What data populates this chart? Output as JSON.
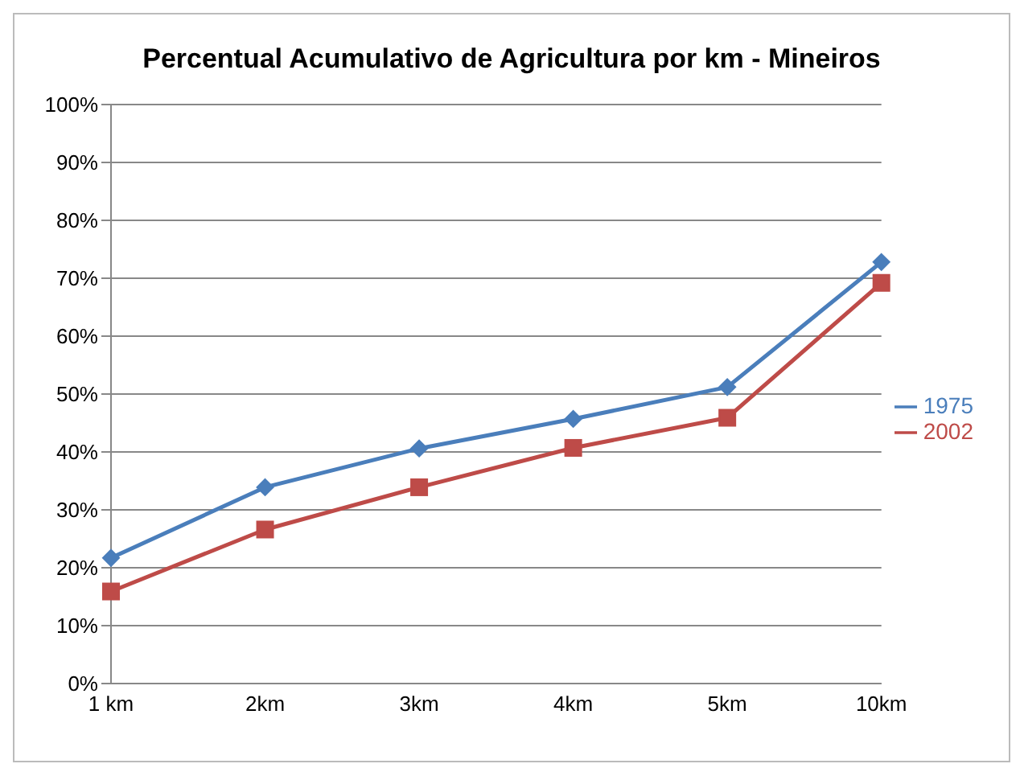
{
  "chart_data": {
    "type": "line",
    "title": "Percentual Acumulativo de Agricultura por km - Mineiros",
    "categories": [
      "1 km",
      "2km",
      "3km",
      "4km",
      "5km",
      "10km"
    ],
    "series": [
      {
        "name": "1975",
        "color": "#4a7ebb",
        "marker": "diamond",
        "values": [
          21.7,
          33.9,
          40.6,
          45.7,
          51.2,
          72.8
        ]
      },
      {
        "name": "2002",
        "color": "#be4b48",
        "marker": "square",
        "values": [
          15.9,
          26.6,
          33.9,
          40.7,
          45.9,
          69.2
        ]
      }
    ],
    "ylim": [
      0,
      100
    ],
    "yticks": [
      {
        "value": 0,
        "label": "0%"
      },
      {
        "value": 10,
        "label": "10%"
      },
      {
        "value": 20,
        "label": "20%"
      },
      {
        "value": 30,
        "label": "30%"
      },
      {
        "value": 40,
        "label": "40%"
      },
      {
        "value": 50,
        "label": "50%"
      },
      {
        "value": 60,
        "label": "60%"
      },
      {
        "value": 70,
        "label": "70%"
      },
      {
        "value": 80,
        "label": "80%"
      },
      {
        "value": 90,
        "label": "90%"
      },
      {
        "value": 100,
        "label": "100%"
      }
    ],
    "grid": "y",
    "legend": "right"
  }
}
